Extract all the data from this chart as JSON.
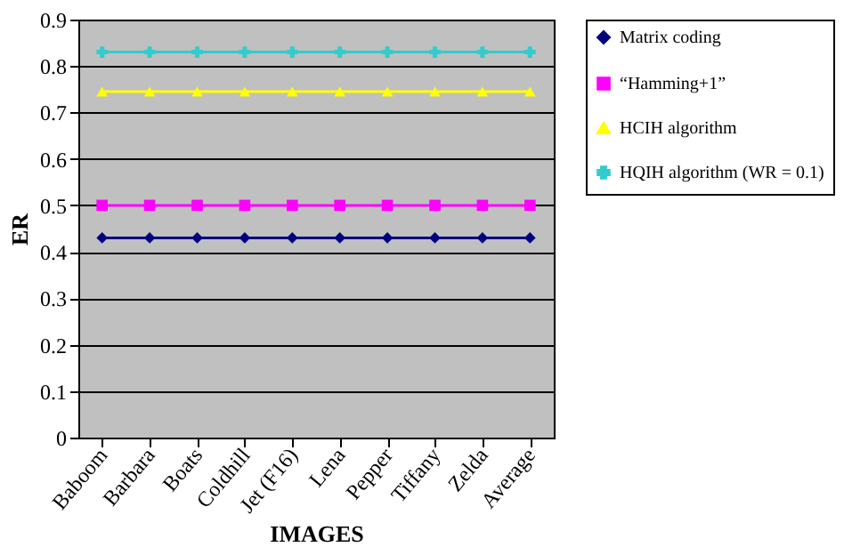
{
  "chart_data": {
    "type": "line",
    "xlabel": "IMAGES",
    "ylabel": "ER",
    "categories": [
      "Baboom",
      "Barbara",
      "Boats",
      "Coldhill",
      "Jet (F16)",
      "Lena",
      "Pepper",
      "Tiffany",
      "Zelda",
      "Average"
    ],
    "series": [
      {
        "name": "Matrix coding",
        "color": "#000080",
        "marker": "diamond",
        "values": [
          0.43,
          0.43,
          0.43,
          0.43,
          0.43,
          0.43,
          0.43,
          0.43,
          0.43,
          0.43
        ]
      },
      {
        "name": "“Hamming+1”",
        "color": "#ff00ff",
        "marker": "square",
        "values": [
          0.5,
          0.5,
          0.5,
          0.5,
          0.5,
          0.5,
          0.5,
          0.5,
          0.5,
          0.5
        ]
      },
      {
        "name": "HCIH algorithm",
        "color": "#ffff00",
        "marker": "triangle",
        "values": [
          0.745,
          0.745,
          0.745,
          0.745,
          0.745,
          0.745,
          0.745,
          0.745,
          0.745,
          0.745
        ]
      },
      {
        "name": "HQIH algorithm (WR = 0.1)",
        "color": "#33cccc",
        "marker": "cross",
        "values": [
          0.83,
          0.83,
          0.83,
          0.83,
          0.83,
          0.83,
          0.83,
          0.83,
          0.83,
          0.83
        ]
      }
    ],
    "ylim": [
      0,
      0.9
    ],
    "yticks": [
      0,
      0.1,
      0.2,
      0.3,
      0.4,
      0.5,
      0.6,
      0.7,
      0.8,
      0.9
    ],
    "grid": "y",
    "legend": "right"
  }
}
